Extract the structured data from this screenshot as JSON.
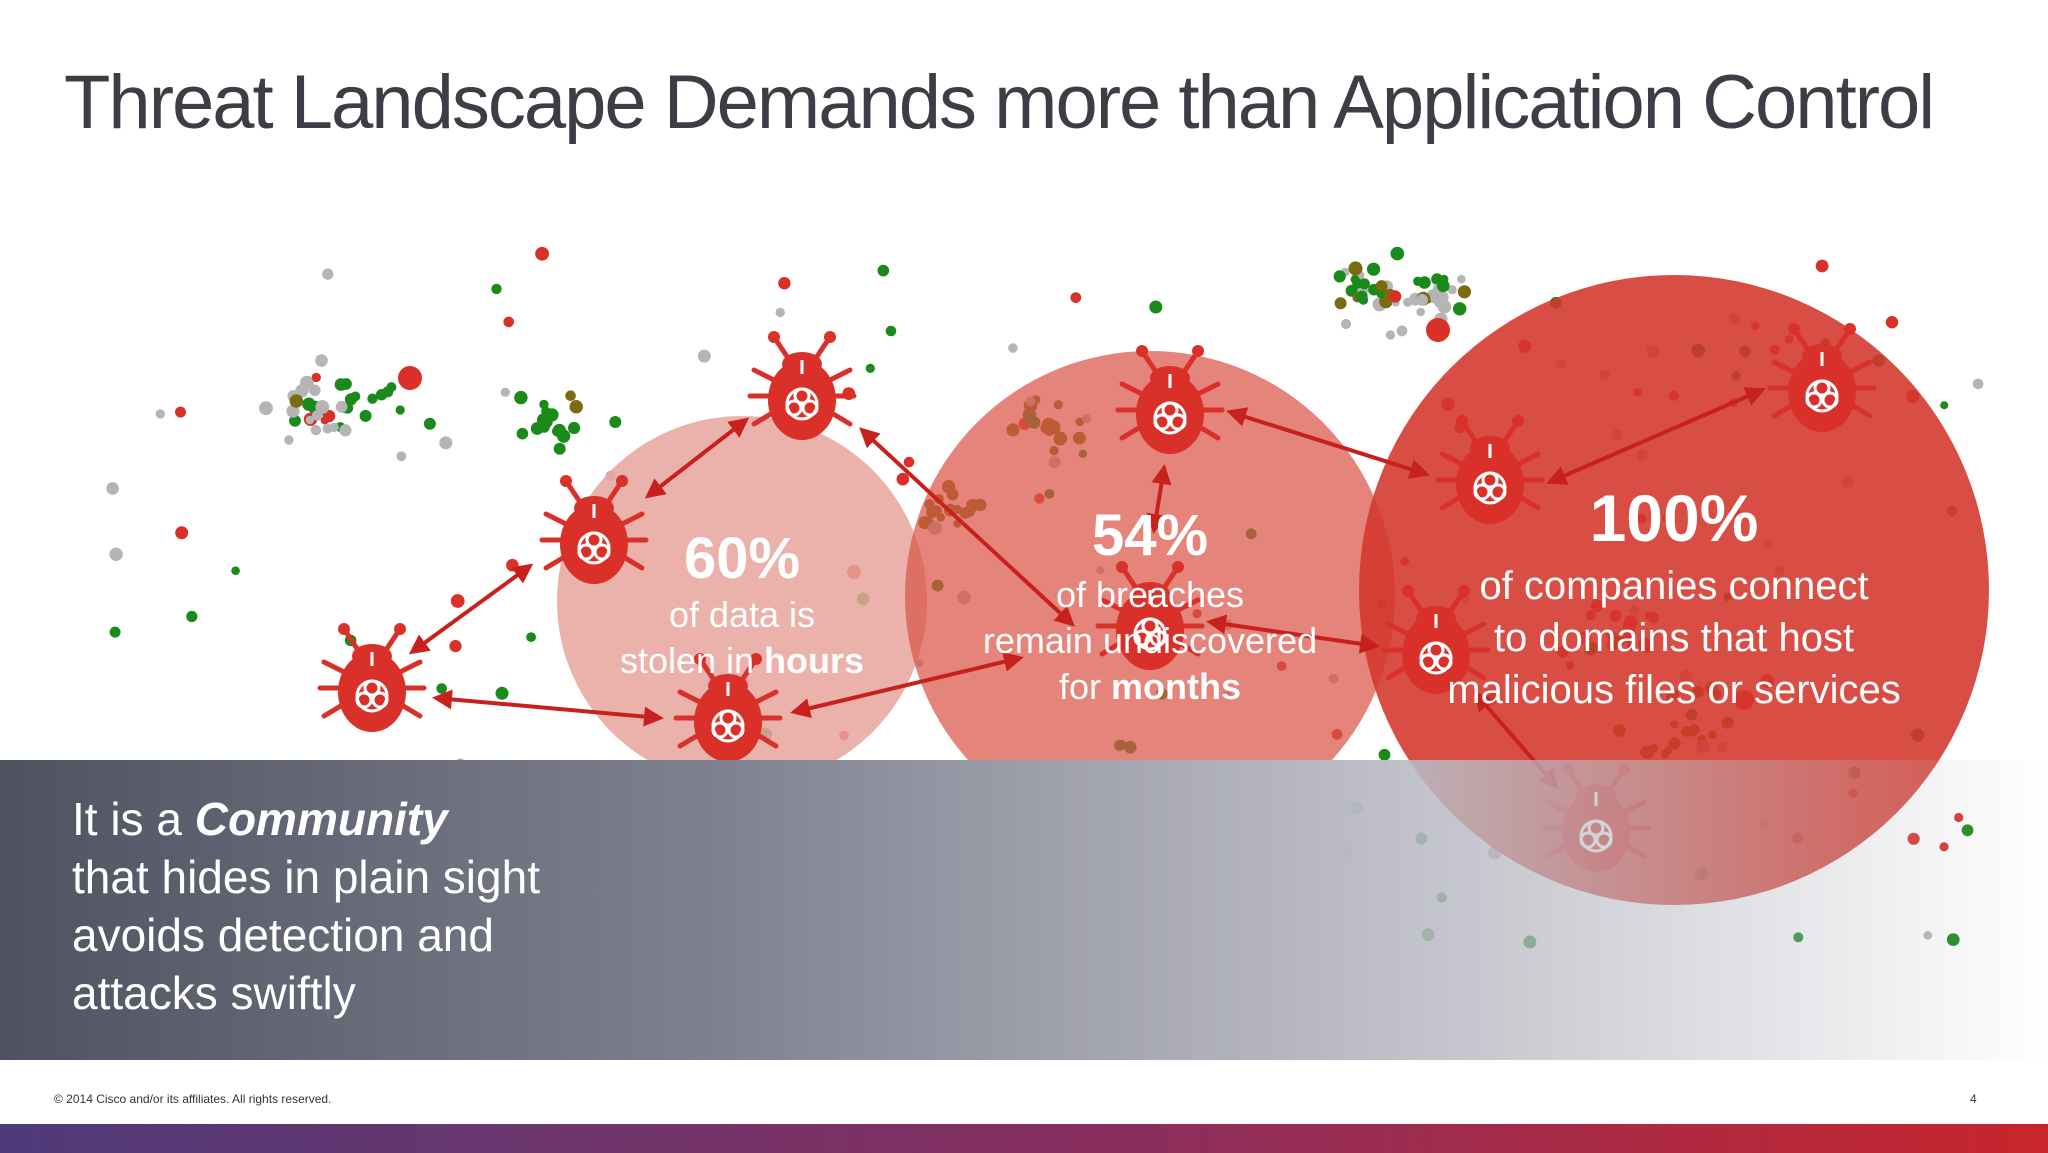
{
  "title": "Threat Landscape Demands more than Application Control",
  "band": {
    "line1_prefix": "It is a ",
    "line1_bold": "Community",
    "line2": "that hides in plain sight",
    "line3": "avoids detection and",
    "line4": "attacks swiftly"
  },
  "stats": [
    {
      "pct": "60%",
      "line1": "of data is",
      "line2_prefix": "stolen in ",
      "line2_bold": "hours"
    },
    {
      "pct": "54%",
      "line1": "of breaches",
      "line2": "remain undiscovered",
      "line3_prefix": "for ",
      "line3_bold": "months"
    },
    {
      "pct": "100%",
      "line1": "of companies connect",
      "line2": "to domains that host",
      "line3": "malicious files or services"
    }
  ],
  "footer": {
    "copyright": "© 2014 Cisco and/or its affiliates. All rights reserved.",
    "page": "4"
  },
  "icons": {
    "bug": "biohazard-bug-icon"
  },
  "colors": {
    "accent_red": "#d9302a",
    "dot_green": "#1a8a1a",
    "dot_gray": "#b5b5b5",
    "dot_olive": "#7a6a10"
  }
}
